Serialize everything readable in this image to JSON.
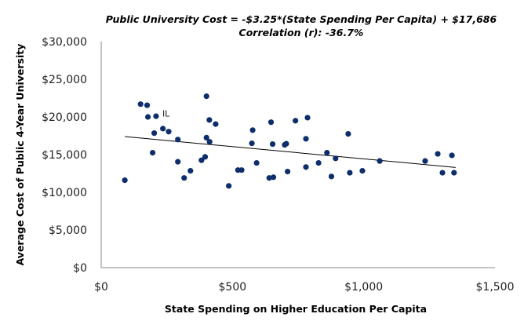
{
  "chart_data": {
    "type": "scatter",
    "title": "Public University Cost = -$3.25*(State Spending Per Capita) + $17,686",
    "subtitle": "Correlation (r): -36.7%",
    "xlabel": "State Spending on Higher Education Per Capita",
    "ylabel": "Average Cost of Public 4-Year University",
    "xlim": [
      0,
      1500
    ],
    "ylim": [
      0,
      30000
    ],
    "x_ticks": [
      {
        "value": 0,
        "label": "$0"
      },
      {
        "value": 500,
        "label": "$500"
      },
      {
        "value": 1000,
        "label": "$1,000"
      },
      {
        "value": 1500,
        "label": "$1,500"
      }
    ],
    "y_ticks": [
      {
        "value": 0,
        "label": "$0"
      },
      {
        "value": 5000,
        "label": "$5,000"
      },
      {
        "value": 10000,
        "label": "$10,000"
      },
      {
        "value": 15000,
        "label": "$15,000"
      },
      {
        "value": 20000,
        "label": "$20,000"
      },
      {
        "value": 25000,
        "label": "$25,000"
      },
      {
        "value": 30000,
        "label": "$30,000"
      }
    ],
    "grid": false,
    "marker_color": "#0d2d6b",
    "trendline": {
      "slope": -3.25,
      "intercept": 17686,
      "x_range": [
        90,
        1350
      ],
      "color": "#000000"
    },
    "annotations": [
      {
        "label": "IL",
        "x": 209,
        "y": 20136
      }
    ],
    "points": [
      [
        90,
        11600
      ],
      [
        150,
        21700
      ],
      [
        175,
        21550
      ],
      [
        178,
        20000
      ],
      [
        209,
        20100
      ],
      [
        202,
        17850
      ],
      [
        196,
        15250
      ],
      [
        235,
        18450
      ],
      [
        257,
        18050
      ],
      [
        292,
        17000
      ],
      [
        292,
        14050
      ],
      [
        316,
        11900
      ],
      [
        340,
        12850
      ],
      [
        382,
        14250
      ],
      [
        396,
        14700
      ],
      [
        401,
        22750
      ],
      [
        401,
        17250
      ],
      [
        413,
        16700
      ],
      [
        412,
        19600
      ],
      [
        436,
        19050
      ],
      [
        486,
        10850
      ],
      [
        521,
        12950
      ],
      [
        535,
        12950
      ],
      [
        577,
        18250
      ],
      [
        574,
        16500
      ],
      [
        592,
        13900
      ],
      [
        647,
        19300
      ],
      [
        653,
        16400
      ],
      [
        640,
        11900
      ],
      [
        656,
        12000
      ],
      [
        699,
        16300
      ],
      [
        705,
        16450
      ],
      [
        710,
        12750
      ],
      [
        740,
        19500
      ],
      [
        786,
        19900
      ],
      [
        780,
        17100
      ],
      [
        780,
        13350
      ],
      [
        828,
        13900
      ],
      [
        860,
        15250
      ],
      [
        893,
        14500
      ],
      [
        877,
        12100
      ],
      [
        941,
        17750
      ],
      [
        947,
        12600
      ],
      [
        995,
        12850
      ],
      [
        1061,
        14150
      ],
      [
        1234,
        14150
      ],
      [
        1282,
        15100
      ],
      [
        1336,
        14900
      ],
      [
        1300,
        12600
      ],
      [
        1344,
        12600
      ]
    ]
  }
}
